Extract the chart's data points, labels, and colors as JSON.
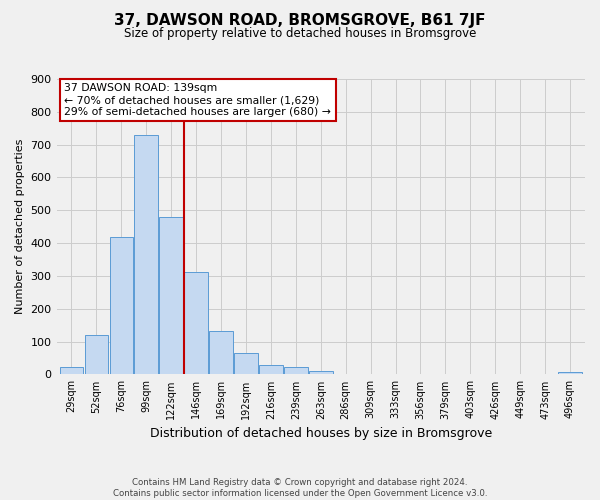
{
  "title": "37, DAWSON ROAD, BROMSGROVE, B61 7JF",
  "subtitle": "Size of property relative to detached houses in Bromsgrove",
  "xlabel": "Distribution of detached houses by size in Bromsgrove",
  "ylabel": "Number of detached properties",
  "bar_labels": [
    "29sqm",
    "52sqm",
    "76sqm",
    "99sqm",
    "122sqm",
    "146sqm",
    "169sqm",
    "192sqm",
    "216sqm",
    "239sqm",
    "263sqm",
    "286sqm",
    "309sqm",
    "333sqm",
    "356sqm",
    "379sqm",
    "403sqm",
    "426sqm",
    "449sqm",
    "473sqm",
    "496sqm"
  ],
  "bar_values": [
    22,
    120,
    418,
    730,
    480,
    313,
    133,
    65,
    28,
    22,
    10,
    0,
    0,
    0,
    0,
    0,
    0,
    0,
    0,
    0,
    8
  ],
  "bar_color": "#c5d9f1",
  "bar_edge_color": "#5b9bd5",
  "vline_x_idx": 5,
  "vline_color": "#c00000",
  "annotation_line1": "37 DAWSON ROAD: 139sqm",
  "annotation_line2": "← 70% of detached houses are smaller (1,629)",
  "annotation_line3": "29% of semi-detached houses are larger (680) →",
  "annotation_box_color": "#c00000",
  "ylim": [
    0,
    900
  ],
  "yticks": [
    0,
    100,
    200,
    300,
    400,
    500,
    600,
    700,
    800,
    900
  ],
  "grid_color": "#cccccc",
  "bg_color": "#f0f0f0",
  "footer_line1": "Contains HM Land Registry data © Crown copyright and database right 2024.",
  "footer_line2": "Contains public sector information licensed under the Open Government Licence v3.0."
}
